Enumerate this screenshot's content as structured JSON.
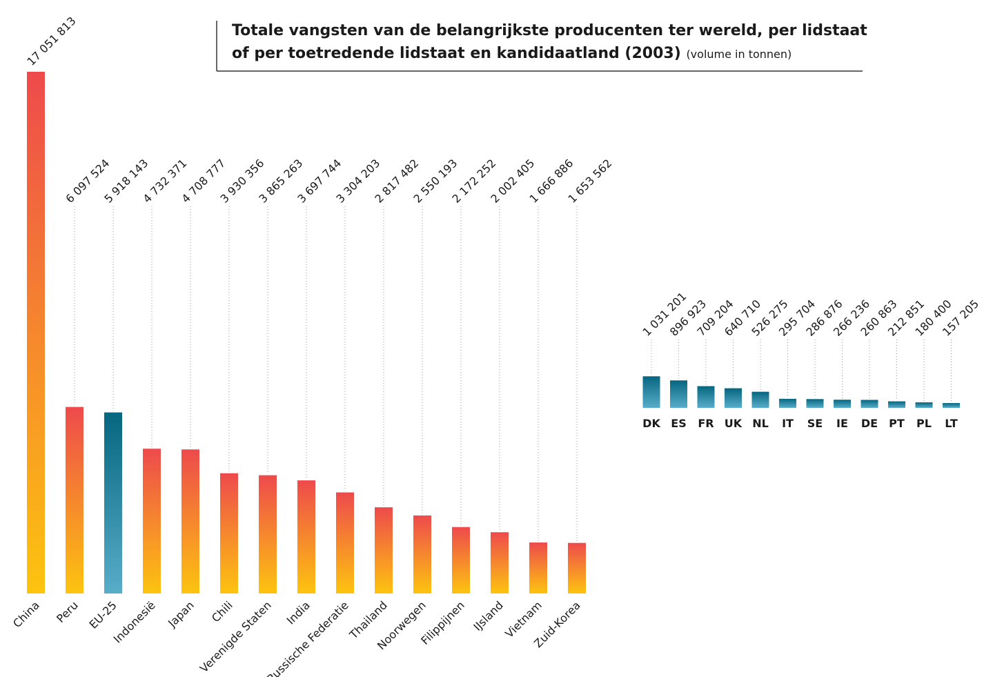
{
  "chart_data": [
    {
      "type": "bar",
      "title": "Totale vangsten van de belangrijkste producenten ter wereld, per lidstaat of per toetredende lidstaat en kandidaatland (2003)",
      "subtitle": "(volume in tonnen)",
      "categories": [
        "China",
        "Peru",
        "EU-25",
        "Indonesië",
        "Japan",
        "Chili",
        "Verenigde Staten",
        "India",
        "Russische Federatie",
        "Thailand",
        "Noorwegen",
        "Filippijnen",
        "IJsland",
        "Vietnam",
        "Zuid-Korea"
      ],
      "values": [
        17051813,
        6097524,
        5918143,
        4732371,
        4708777,
        3930356,
        3865263,
        3697744,
        3304203,
        2817482,
        2550193,
        2172252,
        2002405,
        1666886,
        1653562
      ],
      "value_labels": [
        "17 051 813",
        "6 097 524",
        "5 918 143",
        "4 732 371",
        "4 708 777",
        "3 930 356",
        "3 865 263",
        "3 697 744",
        "3 304 203",
        "2 817 482",
        "2 550 193",
        "2 172 252",
        "2 002 405",
        "1 666 886",
        "1 653 562"
      ],
      "colors": [
        [
          "#ee4a4c",
          "#fdc40f"
        ],
        [
          "#ee4a4c",
          "#fdc40f"
        ],
        [
          "#06667f",
          "#58adc9"
        ],
        [
          "#ee4a4c",
          "#fdc40f"
        ],
        [
          "#ee4a4c",
          "#fdc40f"
        ],
        [
          "#ee4a4c",
          "#fdc40f"
        ],
        [
          "#ee4a4c",
          "#fdc40f"
        ],
        [
          "#ee4a4c",
          "#fdc40f"
        ],
        [
          "#ee4a4c",
          "#fdc40f"
        ],
        [
          "#ee4a4c",
          "#fdc40f"
        ],
        [
          "#ee4a4c",
          "#fdc40f"
        ],
        [
          "#ee4a4c",
          "#fdc40f"
        ],
        [
          "#ee4a4c",
          "#fdc40f"
        ],
        [
          "#ee4a4c",
          "#fdc40f"
        ],
        [
          "#ee4a4c",
          "#fdc40f"
        ]
      ]
    },
    {
      "type": "bar",
      "categories": [
        "DK",
        "ES",
        "FR",
        "UK",
        "NL",
        "IT",
        "SE",
        "IE",
        "DE",
        "PT",
        "PL",
        "LT"
      ],
      "values": [
        1031201,
        896923,
        709204,
        640710,
        526275,
        295704,
        286876,
        266236,
        260863,
        212851,
        180400,
        157205
      ],
      "value_labels": [
        "1 031 201",
        "896 923",
        "709 204",
        "640 710",
        "526 275",
        "295 704",
        "286 876",
        "266 236",
        "260 863",
        "212 851",
        "180 400",
        "157 205"
      ],
      "color": [
        "#06667f",
        "#58adc9"
      ]
    }
  ]
}
